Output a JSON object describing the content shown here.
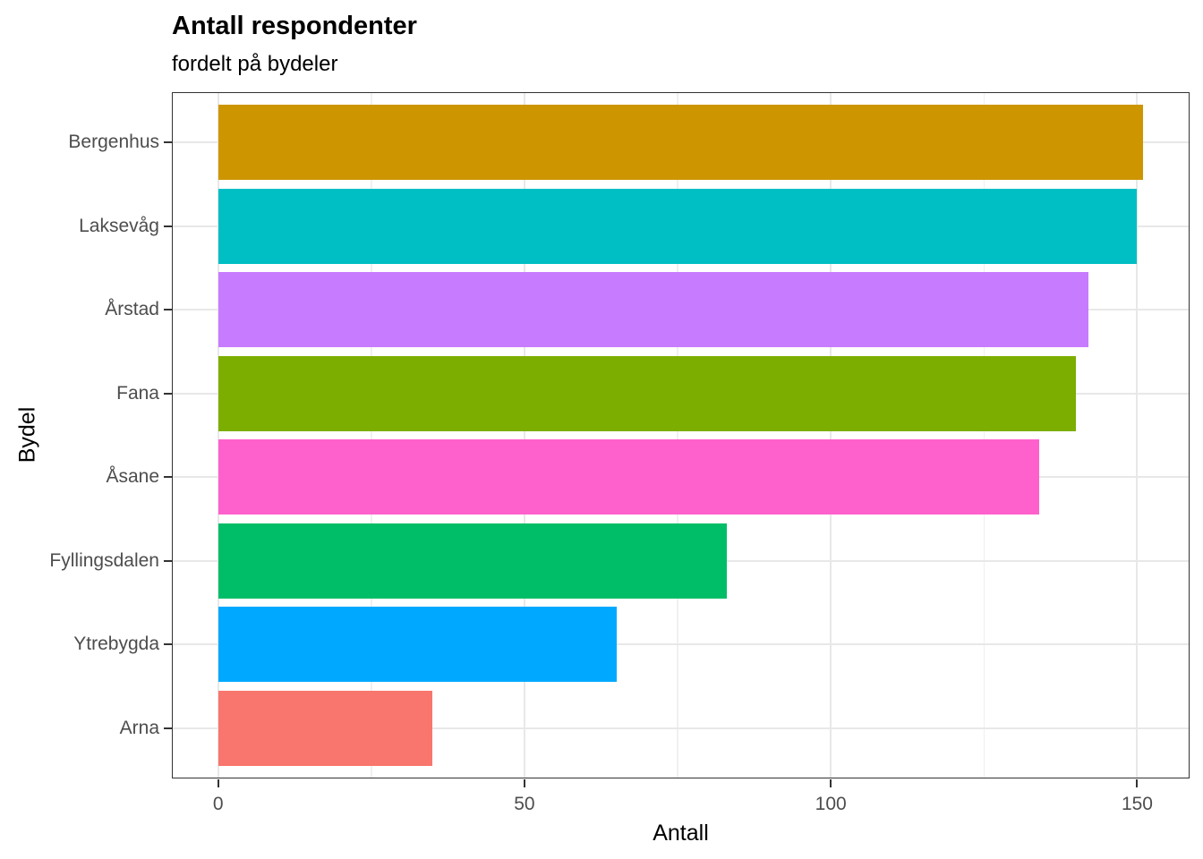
{
  "chart_data": {
    "type": "bar",
    "orientation": "horizontal",
    "title": "Antall respondenter",
    "subtitle": "fordelt på bydeler",
    "xlabel": "Antall",
    "ylabel": "Bydel",
    "categories": [
      "Bergenhus",
      "Laksevåg",
      "Årstad",
      "Fana",
      "Åsane",
      "Fyllingsdalen",
      "Ytrebygda",
      "Arna"
    ],
    "values": [
      151,
      150,
      142,
      140,
      134,
      83,
      65,
      35
    ],
    "bar_colors": [
      "#CD9600",
      "#00BFC4",
      "#C77CFF",
      "#7CAE00",
      "#FF61CC",
      "#00BE67",
      "#00A9FF",
      "#F8766D"
    ],
    "x_ticks": [
      0,
      50,
      100,
      150
    ],
    "x_minor_gridlines": [
      25,
      75,
      125
    ],
    "xlim": [
      -7.55,
      158.55
    ],
    "bar_width_fraction": 0.9,
    "grid": true,
    "legend": false,
    "theme": {
      "panel_background": "#FFFFFF",
      "panel_border_color": "#333333",
      "major_gridline_color": "#E8E8E8",
      "minor_gridline_color": "#F0F0F0",
      "tick_mark_color": "#333333",
      "tick_label_color": "#4D4D4D",
      "title_color": "#000000"
    }
  }
}
